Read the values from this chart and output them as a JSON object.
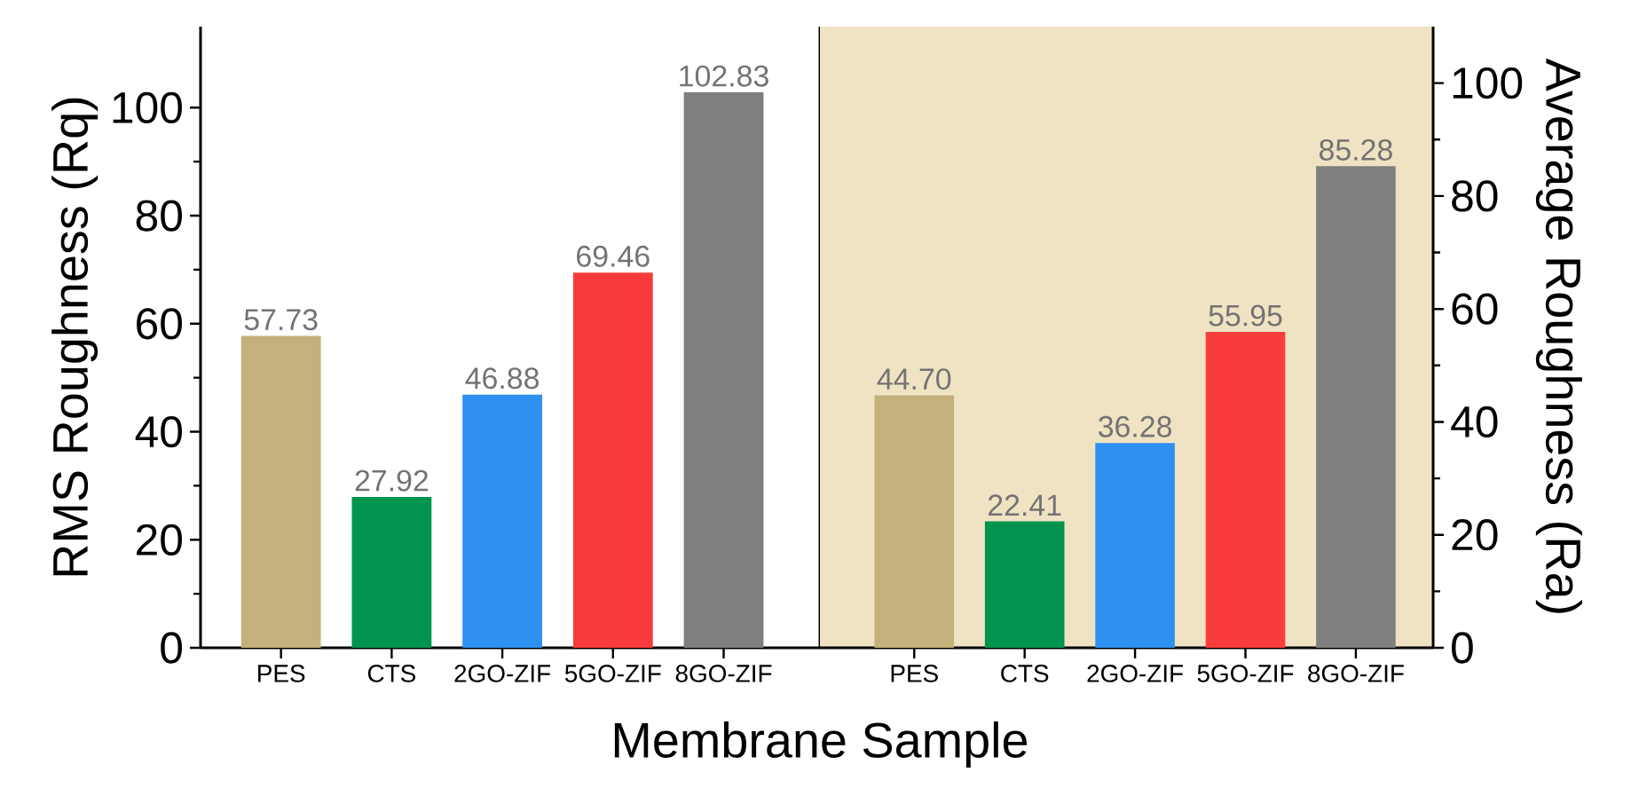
{
  "chart_data": [
    {
      "type": "bar",
      "xlabel": "Membrane Sample",
      "ylabel": "RMS Roughness (Rq)",
      "categories": [
        "PES",
        "CTS",
        "2GO-ZIF",
        "5GO-ZIF",
        "8GO-ZIF"
      ],
      "series": [
        {
          "values": [
            57.73,
            27.92,
            46.88,
            69.46,
            102.83
          ],
          "value_labels": [
            "57.73",
            "27.92",
            "46.88",
            "69.46",
            "102.83"
          ],
          "colors": [
            "#c4b07a",
            "#00944e",
            "#2e90f0",
            "#f83c3c",
            "#7f7f7f"
          ]
        }
      ],
      "ylim": [
        0,
        115
      ],
      "yticks": [
        0,
        20,
        40,
        60,
        80,
        100
      ]
    },
    {
      "type": "bar",
      "y2label": "Average Roughness (Ra)",
      "categories": [
        "PES",
        "CTS",
        "2GO-ZIF",
        "5GO-ZIF",
        "8GO-ZIF"
      ],
      "series": [
        {
          "axis": "y2",
          "values": [
            44.7,
            22.41,
            36.28,
            55.95,
            85.28
          ],
          "value_labels": [
            "44.70",
            "22.41",
            "36.28",
            "55.95",
            "85.28"
          ],
          "colors": [
            "#c4b07a",
            "#00944e",
            "#2e90f0",
            "#f83c3c",
            "#7f7f7f"
          ]
        }
      ],
      "y2lim": [
        0,
        110
      ],
      "y2ticks": [
        0,
        20,
        40,
        60,
        80,
        100
      ]
    }
  ]
}
